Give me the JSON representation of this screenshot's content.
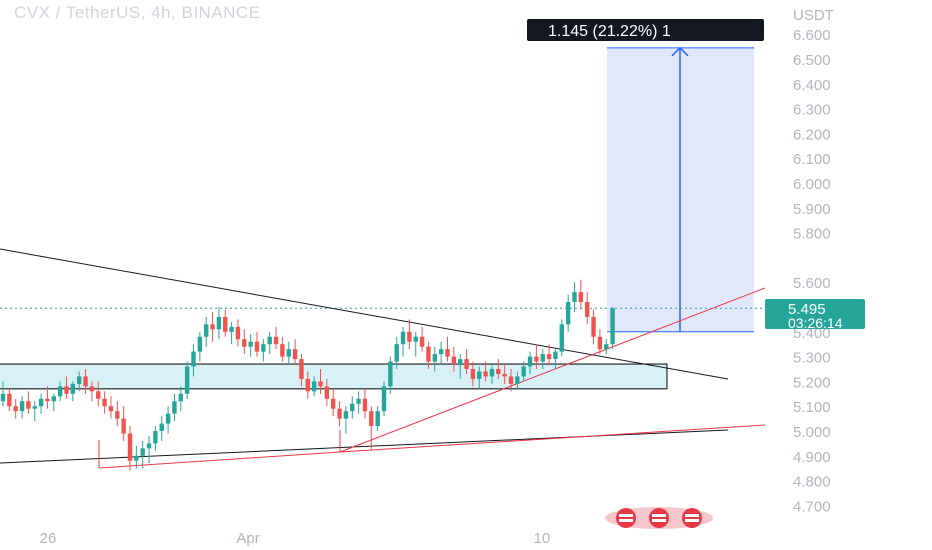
{
  "header": {
    "title": "CVX / TetherUS, 4h, BINANCE"
  },
  "price_axis": {
    "currency": "USDT",
    "ticks": [
      "6.600",
      "6.500",
      "6.400",
      "6.300",
      "6.200",
      "6.100",
      "6.000",
      "5.900",
      "5.800",
      "5.600",
      "5.400",
      "5.300",
      "5.200",
      "5.100",
      "5.000",
      "4.900",
      "4.800",
      "4.700"
    ]
  },
  "time_axis": {
    "ticks": [
      "26",
      "Apr",
      "10"
    ]
  },
  "last_price": {
    "value": "5.495",
    "countdown": "03:26:14"
  },
  "measure_label": "1.145 (21.22%) 1",
  "colors": {
    "up": "#26a69a",
    "down": "#ef5350",
    "box": "#d7f1f6",
    "range_fill": "#e1e8fb",
    "range_line": "#2962ff",
    "trend_red": "#f23645"
  },
  "chart_data": {
    "type": "candlestick",
    "title": "CVX / TetherUS, 4h, BINANCE",
    "ylabel": "USDT",
    "ylim": [
      4.65,
      6.75
    ],
    "x_ticks": [
      "26",
      "Apr",
      "10"
    ],
    "last_price": 5.495,
    "measured_move": {
      "from": 5.4,
      "to": 6.545,
      "change": 1.145,
      "percent": 21.22
    },
    "support_box": [
      5.17,
      5.27
    ],
    "candles": [
      [
        5.12,
        5.2,
        5.1,
        5.15
      ],
      [
        5.15,
        5.17,
        5.08,
        5.1
      ],
      [
        5.1,
        5.13,
        5.05,
        5.08
      ],
      [
        5.08,
        5.14,
        5.05,
        5.12
      ],
      [
        5.12,
        5.16,
        5.07,
        5.09
      ],
      [
        5.09,
        5.12,
        5.04,
        5.1
      ],
      [
        5.1,
        5.15,
        5.07,
        5.13
      ],
      [
        5.13,
        5.18,
        5.09,
        5.12
      ],
      [
        5.12,
        5.15,
        5.08,
        5.14
      ],
      [
        5.14,
        5.2,
        5.12,
        5.18
      ],
      [
        5.18,
        5.22,
        5.13,
        5.15
      ],
      [
        5.15,
        5.2,
        5.12,
        5.19
      ],
      [
        5.19,
        5.24,
        5.16,
        5.22
      ],
      [
        5.22,
        5.25,
        5.15,
        5.18
      ],
      [
        5.18,
        5.2,
        5.12,
        5.16
      ],
      [
        5.16,
        5.2,
        5.1,
        5.13
      ],
      [
        5.13,
        5.16,
        5.07,
        5.1
      ],
      [
        5.1,
        5.14,
        5.05,
        5.08
      ],
      [
        5.08,
        5.12,
        5.02,
        5.05
      ],
      [
        5.05,
        5.1,
        4.96,
        4.99
      ],
      [
        4.99,
        5.02,
        4.84,
        4.88
      ],
      [
        4.88,
        4.94,
        4.85,
        4.9
      ],
      [
        4.9,
        4.96,
        4.85,
        4.93
      ],
      [
        4.93,
        4.98,
        4.87,
        4.95
      ],
      [
        4.95,
        5.02,
        4.92,
        5.0
      ],
      [
        5.0,
        5.06,
        4.96,
        5.03
      ],
      [
        5.03,
        5.1,
        4.99,
        5.07
      ],
      [
        5.07,
        5.15,
        5.04,
        5.12
      ],
      [
        5.12,
        5.18,
        5.08,
        5.15
      ],
      [
        5.15,
        5.28,
        5.13,
        5.26
      ],
      [
        5.26,
        5.35,
        5.22,
        5.32
      ],
      [
        5.32,
        5.4,
        5.28,
        5.38
      ],
      [
        5.38,
        5.46,
        5.34,
        5.43
      ],
      [
        5.43,
        5.48,
        5.36,
        5.41
      ],
      [
        5.41,
        5.5,
        5.37,
        5.46
      ],
      [
        5.46,
        5.49,
        5.38,
        5.4
      ],
      [
        5.4,
        5.44,
        5.35,
        5.42
      ],
      [
        5.42,
        5.45,
        5.34,
        5.37
      ],
      [
        5.37,
        5.41,
        5.31,
        5.34
      ],
      [
        5.34,
        5.39,
        5.3,
        5.36
      ],
      [
        5.36,
        5.4,
        5.3,
        5.32
      ],
      [
        5.32,
        5.37,
        5.28,
        5.35
      ],
      [
        5.35,
        5.4,
        5.31,
        5.38
      ],
      [
        5.38,
        5.42,
        5.33,
        5.35
      ],
      [
        5.35,
        5.38,
        5.28,
        5.3
      ],
      [
        5.3,
        5.36,
        5.27,
        5.33
      ],
      [
        5.33,
        5.37,
        5.27,
        5.29
      ],
      [
        5.29,
        5.31,
        5.18,
        5.21
      ],
      [
        5.21,
        5.24,
        5.13,
        5.16
      ],
      [
        5.16,
        5.22,
        5.14,
        5.2
      ],
      [
        5.2,
        5.25,
        5.15,
        5.18
      ],
      [
        5.18,
        5.21,
        5.1,
        5.13
      ],
      [
        5.13,
        5.17,
        5.06,
        5.09
      ],
      [
        5.09,
        5.12,
        5.02,
        5.05
      ],
      [
        5.05,
        5.1,
        4.99,
        5.08
      ],
      [
        5.08,
        5.14,
        5.05,
        5.11
      ],
      [
        5.11,
        5.16,
        5.07,
        5.13
      ],
      [
        5.13,
        5.17,
        5.05,
        5.08
      ],
      [
        5.08,
        5.1,
        4.92,
        5.02
      ],
      [
        5.02,
        5.1,
        5.0,
        5.08
      ],
      [
        5.08,
        5.2,
        5.06,
        5.18
      ],
      [
        5.18,
        5.3,
        5.15,
        5.28
      ],
      [
        5.28,
        5.38,
        5.25,
        5.35
      ],
      [
        5.35,
        5.42,
        5.3,
        5.4
      ],
      [
        5.4,
        5.45,
        5.33,
        5.36
      ],
      [
        5.36,
        5.4,
        5.3,
        5.38
      ],
      [
        5.38,
        5.42,
        5.32,
        5.34
      ],
      [
        5.34,
        5.36,
        5.25,
        5.28
      ],
      [
        5.28,
        5.34,
        5.24,
        5.31
      ],
      [
        5.31,
        5.36,
        5.27,
        5.33
      ],
      [
        5.33,
        5.38,
        5.28,
        5.3
      ],
      [
        5.3,
        5.34,
        5.24,
        5.27
      ],
      [
        5.27,
        5.31,
        5.21,
        5.29
      ],
      [
        5.29,
        5.33,
        5.23,
        5.25
      ],
      [
        5.25,
        5.28,
        5.18,
        5.21
      ],
      [
        5.21,
        5.26,
        5.17,
        5.24
      ],
      [
        5.24,
        5.28,
        5.2,
        5.22
      ],
      [
        5.22,
        5.27,
        5.19,
        5.25
      ],
      [
        5.25,
        5.29,
        5.21,
        5.23
      ],
      [
        5.23,
        5.27,
        5.19,
        5.22
      ],
      [
        5.22,
        5.25,
        5.16,
        5.19
      ],
      [
        5.19,
        5.24,
        5.17,
        5.22
      ],
      [
        5.22,
        5.28,
        5.2,
        5.26
      ],
      [
        5.26,
        5.32,
        5.23,
        5.3
      ],
      [
        5.3,
        5.35,
        5.25,
        5.28
      ],
      [
        5.28,
        5.33,
        5.25,
        5.31
      ],
      [
        5.31,
        5.35,
        5.27,
        5.29
      ],
      [
        5.29,
        5.33,
        5.25,
        5.32
      ],
      [
        5.32,
        5.45,
        5.3,
        5.43
      ],
      [
        5.43,
        5.55,
        5.4,
        5.52
      ],
      [
        5.52,
        5.6,
        5.48,
        5.56
      ],
      [
        5.56,
        5.61,
        5.49,
        5.52
      ],
      [
        5.52,
        5.56,
        5.43,
        5.46
      ],
      [
        5.46,
        5.49,
        5.35,
        5.38
      ],
      [
        5.38,
        5.41,
        5.31,
        5.33
      ],
      [
        5.33,
        5.37,
        5.31,
        5.35
      ],
      [
        5.35,
        5.5,
        5.33,
        5.495
      ]
    ]
  }
}
